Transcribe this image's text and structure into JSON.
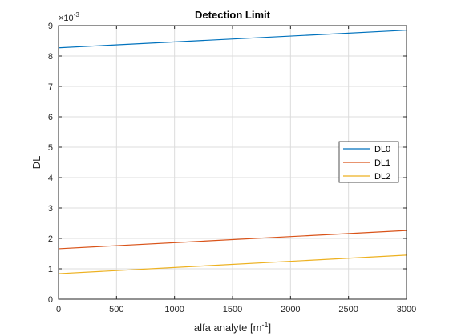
{
  "chart_data": {
    "type": "line",
    "title": "Detection Limit",
    "xlabel": {
      "base": "alfa analyte [m",
      "sup": "-1",
      "close": "]"
    },
    "ylabel": "DL",
    "y_exponent": {
      "base": "×10",
      "sup": "-3"
    },
    "xlim": [
      0,
      3000
    ],
    "ylim": [
      0,
      9
    ],
    "xticks": [
      0,
      500,
      1000,
      1500,
      2000,
      2500,
      3000
    ],
    "yticks": [
      0,
      1,
      2,
      3,
      4,
      5,
      6,
      7,
      8,
      9
    ],
    "grid": true,
    "legend_location": "right",
    "x": [
      0,
      3000
    ],
    "series": [
      {
        "name": "DL0",
        "color": "#0072BD",
        "values": [
          8.27,
          8.85
        ]
      },
      {
        "name": "DL1",
        "color": "#D95319",
        "values": [
          1.66,
          2.26
        ]
      },
      {
        "name": "DL2",
        "color": "#EDB120",
        "values": [
          0.84,
          1.45
        ]
      }
    ]
  }
}
